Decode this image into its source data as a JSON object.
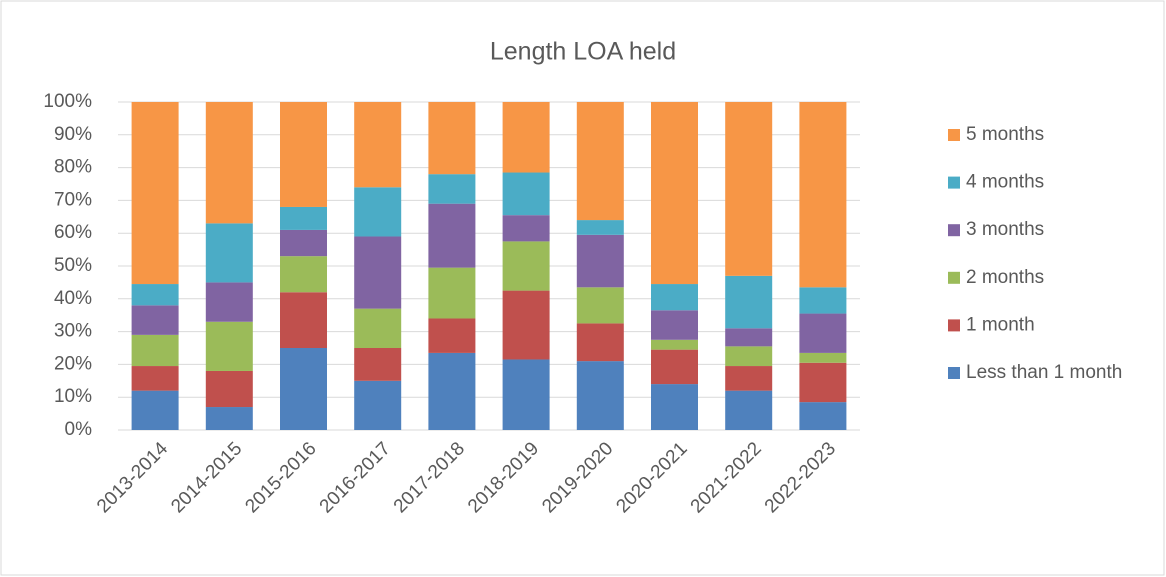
{
  "chart_data": {
    "type": "stacked_bar",
    "title": "Length LOA held",
    "categories": [
      "2013-2014",
      "2014-2015",
      "2015-2016",
      "2016-2017",
      "2017-2018",
      "2018-2019",
      "2019-2020",
      "2020-2021",
      "2021-2022",
      "2022-2023"
    ],
    "series": [
      {
        "name": "Less than 1 month",
        "color": "#4f81bd",
        "values": [
          12,
          7,
          25,
          15,
          23.5,
          21.5,
          21,
          14,
          12,
          8.5
        ]
      },
      {
        "name": "1 month",
        "color": "#c0504d",
        "values": [
          7.5,
          11,
          17,
          10,
          10.5,
          21,
          11.5,
          10.5,
          7.5,
          12
        ]
      },
      {
        "name": "2 months",
        "color": "#9bbb59",
        "values": [
          9.5,
          15,
          11,
          12,
          15.5,
          15,
          11,
          3,
          6,
          3
        ]
      },
      {
        "name": "3 months",
        "color": "#8064a2",
        "values": [
          9,
          12,
          8,
          22,
          19.5,
          8,
          16,
          9,
          5.5,
          12
        ]
      },
      {
        "name": "4 months",
        "color": "#4bacc6",
        "values": [
          6.5,
          18,
          7,
          15,
          9,
          13,
          4.5,
          8,
          16,
          8
        ]
      },
      {
        "name": "5 months",
        "color": "#f79646",
        "values": [
          55.5,
          37,
          32,
          26,
          22,
          21.5,
          36,
          55.5,
          53,
          56.5
        ]
      }
    ],
    "ylim": [
      0,
      100
    ],
    "yticks": [
      {
        "value": 0,
        "label": "0%"
      },
      {
        "value": 10,
        "label": "10%"
      },
      {
        "value": 20,
        "label": "20%"
      },
      {
        "value": 30,
        "label": "30%"
      },
      {
        "value": 40,
        "label": "40%"
      },
      {
        "value": 50,
        "label": "50%"
      },
      {
        "value": 60,
        "label": "60%"
      },
      {
        "value": 70,
        "label": "70%"
      },
      {
        "value": 80,
        "label": "80%"
      },
      {
        "value": 90,
        "label": "90%"
      },
      {
        "value": 100,
        "label": "100%"
      }
    ],
    "grid": true,
    "legend": "right"
  }
}
